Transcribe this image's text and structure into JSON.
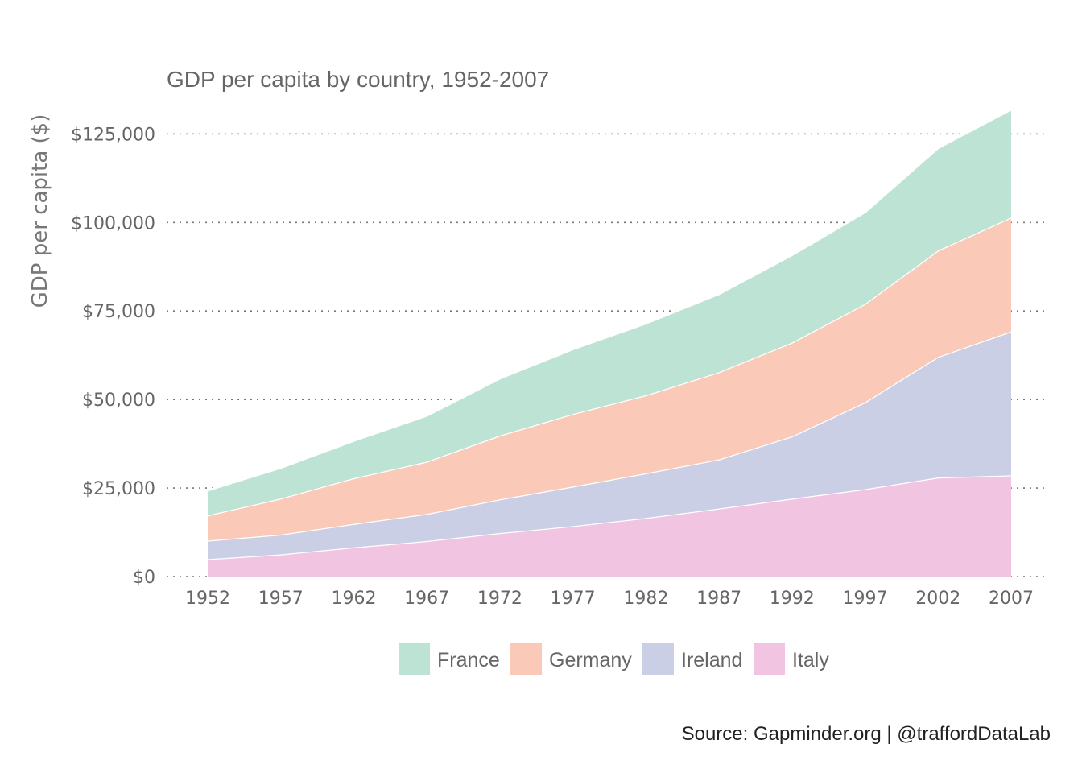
{
  "chart_data": {
    "type": "area",
    "stacked": true,
    "title": "GDP per capita by country, 1952-2007",
    "ylabel": "GDP per capita ($)",
    "xlabel": "",
    "caption": "Source: Gapminder.org  |  @traffordDataLab",
    "x": [
      1952,
      1957,
      1962,
      1967,
      1972,
      1977,
      1982,
      1987,
      1992,
      1997,
      2002,
      2007
    ],
    "x_tick_labels": [
      "1952",
      "1957",
      "1962",
      "1967",
      "1972",
      "1977",
      "1982",
      "1987",
      "1992",
      "1997",
      "2002",
      "2007"
    ],
    "ylim": [
      0,
      131000
    ],
    "y_ticks": [
      0,
      25000,
      50000,
      75000,
      100000,
      125000
    ],
    "y_tick_labels": [
      "$0",
      "$25,000",
      "$50,000",
      "$75,000",
      "$100,000",
      "$125,000"
    ],
    "grid": true,
    "legend_position": "bottom",
    "series": [
      {
        "name": "Italy",
        "color": "#F1C4E2",
        "values": [
          4931,
          6249,
          8244,
          10022,
          12269,
          14256,
          16537,
          19207,
          22014,
          24675,
          27968,
          28570
        ]
      },
      {
        "name": "Ireland",
        "color": "#CACFE6",
        "values": [
          5210,
          5599,
          6632,
          7656,
          9531,
          11151,
          12618,
          13872,
          17558,
          24522,
          34077,
          40676
        ]
      },
      {
        "name": "Germany",
        "color": "#FAC9B8",
        "values": [
          7144,
          10188,
          12902,
          14746,
          18016,
          20513,
          22032,
          24639,
          26505,
          27789,
          30036,
          32170
        ]
      },
      {
        "name": "France",
        "color": "#BDE3D4",
        "values": [
          7030,
          8663,
          10560,
          12999,
          16107,
          18293,
          20294,
          22066,
          24704,
          25890,
          28926,
          30470
        ]
      }
    ],
    "legend_order": [
      "France",
      "Germany",
      "Ireland",
      "Italy"
    ]
  }
}
